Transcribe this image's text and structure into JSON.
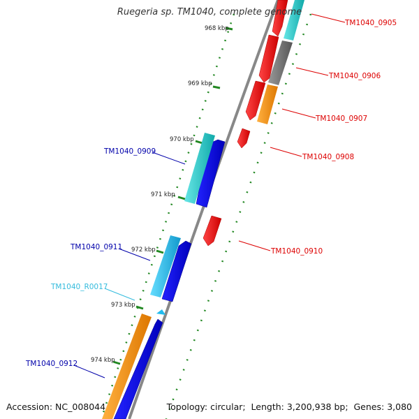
{
  "title": "Ruegeria sp. TM1040, complete genome",
  "footer": {
    "accession_label": "Accession:",
    "accession_value": "NC_008044",
    "topology_label": "Topology:",
    "topology_value": "circular",
    "length_label": "Length:",
    "length_value": "3,200,938 bp",
    "genes_label": "Genes:",
    "genes_value": "3,080"
  },
  "ticks": [
    "968 kbp",
    "969 kbp",
    "970 kbp",
    "971 kbp",
    "972 kbp",
    "973 kbp",
    "974 kbp"
  ],
  "genes": [
    {
      "id": "TM1040_0905",
      "color": "#dd0000"
    },
    {
      "id": "TM1040_0906",
      "color": "#dd0000"
    },
    {
      "id": "TM1040_0907",
      "color": "#dd0000"
    },
    {
      "id": "TM1040_0908",
      "color": "#dd0000"
    },
    {
      "id": "TM1040_0909",
      "color": "#0000aa"
    },
    {
      "id": "TM1040_0910",
      "color": "#dd0000"
    },
    {
      "id": "TM1040_0911",
      "color": "#0000aa"
    },
    {
      "id": "TM1040_R0017",
      "color": "#33bbdd"
    },
    {
      "id": "TM1040_0912",
      "color": "#0000aa"
    }
  ],
  "colors": {
    "backbone": "#888888",
    "tick": "#228822",
    "cds_forward": "#0000dd",
    "cds_reverse": "#ee0000",
    "cyan": "#22cccc",
    "orange": "#ff9900",
    "gray": "#777777",
    "rna": "#22bbee"
  }
}
